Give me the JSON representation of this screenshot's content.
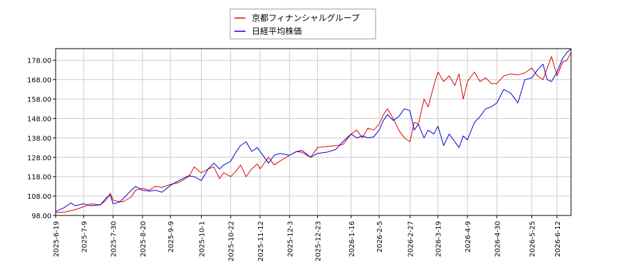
{
  "chart_data": {
    "type": "line",
    "title": "",
    "xlabel": "",
    "ylabel": "",
    "ylim": [
      98.0,
      184.0
    ],
    "yticks": [
      "98.00",
      "108.00",
      "118.00",
      "128.00",
      "138.00",
      "148.00",
      "158.00",
      "168.00",
      "178.00"
    ],
    "ytick_values": [
      98,
      108,
      118,
      128,
      138,
      148,
      158,
      168,
      178
    ],
    "xlim": [
      "2025-06-19",
      "2026-06-22"
    ],
    "xticks": [
      "2025-6-19",
      "2025-7-9",
      "2025-7-30",
      "2025-8-20",
      "2025-9-9",
      "2025-10-1",
      "2025-10-22",
      "2025-11-12",
      "2025-12-3",
      "2025-12-23",
      "2026-1-16",
      "2026-2-5",
      "2026-2-27",
      "2026-3-19",
      "2026-4-9",
      "2026-4-30",
      "2026-5-25",
      "2026-6-12"
    ],
    "grid": true,
    "legend_position": "top-center",
    "series": [
      {
        "name": "京都フィナンシャルグループ",
        "color": "#dd0000",
        "points": [
          [
            "2025-06-19",
            99.5
          ],
          [
            "2025-06-26",
            99.8
          ],
          [
            "2025-07-03",
            101.0
          ],
          [
            "2025-07-09",
            102.5
          ],
          [
            "2025-07-14",
            104.0
          ],
          [
            "2025-07-21",
            103.5
          ],
          [
            "2025-07-25",
            106.0
          ],
          [
            "2025-07-28",
            109.5
          ],
          [
            "2025-07-30",
            106.0
          ],
          [
            "2025-08-01",
            105.5
          ],
          [
            "2025-08-06",
            105.0
          ],
          [
            "2025-08-12",
            107.5
          ],
          [
            "2025-08-15",
            111.0
          ],
          [
            "2025-08-20",
            112.0
          ],
          [
            "2025-08-25",
            111.0
          ],
          [
            "2025-08-29",
            113.0
          ],
          [
            "2025-09-03",
            112.5
          ],
          [
            "2025-09-09",
            114.0
          ],
          [
            "2025-09-15",
            115.0
          ],
          [
            "2025-09-22",
            118.0
          ],
          [
            "2025-09-26",
            123.0
          ],
          [
            "2025-10-01",
            120.0
          ],
          [
            "2025-10-06",
            122.0
          ],
          [
            "2025-10-10",
            123.0
          ],
          [
            "2025-10-14",
            117.0
          ],
          [
            "2025-10-17",
            120.0
          ],
          [
            "2025-10-22",
            118.0
          ],
          [
            "2025-10-26",
            121.0
          ],
          [
            "2025-10-29",
            124.0
          ],
          [
            "2025-11-02",
            118.0
          ],
          [
            "2025-11-06",
            122.0
          ],
          [
            "2025-11-10",
            124.5
          ],
          [
            "2025-11-12",
            122.0
          ],
          [
            "2025-11-18",
            128.0
          ],
          [
            "2025-11-22",
            124.0
          ],
          [
            "2025-11-26",
            126.0
          ],
          [
            "2025-12-03",
            129.0
          ],
          [
            "2025-12-08",
            131.0
          ],
          [
            "2025-12-12",
            130.5
          ],
          [
            "2025-12-18",
            128.0
          ],
          [
            "2025-12-23",
            133.0
          ],
          [
            "2025-12-29",
            133.5
          ],
          [
            "2026-01-05",
            134.0
          ],
          [
            "2026-01-10",
            134.5
          ],
          [
            "2026-01-16",
            140.0
          ],
          [
            "2026-01-20",
            142.0
          ],
          [
            "2026-01-24",
            138.0
          ],
          [
            "2026-01-28",
            143.0
          ],
          [
            "2026-02-01",
            142.0
          ],
          [
            "2026-02-05",
            145.0
          ],
          [
            "2026-02-08",
            150.0
          ],
          [
            "2026-02-11",
            153.0
          ],
          [
            "2026-02-15",
            148.0
          ],
          [
            "2026-02-19",
            142.0
          ],
          [
            "2026-02-23",
            138.0
          ],
          [
            "2026-02-27",
            136.0
          ],
          [
            "2026-03-02",
            146.0
          ],
          [
            "2026-03-05",
            145.0
          ],
          [
            "2026-03-09",
            158.0
          ],
          [
            "2026-03-12",
            154.0
          ],
          [
            "2026-03-16",
            165.0
          ],
          [
            "2026-03-19",
            172.0
          ],
          [
            "2026-03-23",
            167.0
          ],
          [
            "2026-03-27",
            170.0
          ],
          [
            "2026-03-31",
            165.0
          ],
          [
            "2026-04-03",
            171.0
          ],
          [
            "2026-04-06",
            158.0
          ],
          [
            "2026-04-09",
            167.0
          ],
          [
            "2026-04-14",
            172.0
          ],
          [
            "2026-04-18",
            167.0
          ],
          [
            "2026-04-22",
            169.0
          ],
          [
            "2026-04-26",
            166.0
          ],
          [
            "2026-04-30",
            166.0
          ],
          [
            "2026-05-05",
            170.0
          ],
          [
            "2026-05-10",
            171.0
          ],
          [
            "2026-05-15",
            170.5
          ],
          [
            "2026-05-20",
            171.5
          ],
          [
            "2026-05-25",
            174.0
          ],
          [
            "2026-05-29",
            170.0
          ],
          [
            "2026-06-02",
            168.0
          ],
          [
            "2026-06-05",
            174.0
          ],
          [
            "2026-06-08",
            180.0
          ],
          [
            "2026-06-12",
            170.0
          ],
          [
            "2026-06-16",
            177.0
          ],
          [
            "2026-06-19",
            178.0
          ],
          [
            "2026-06-22",
            182.0
          ]
        ]
      },
      {
        "name": "日経平均株価",
        "color": "#0000cc",
        "points": [
          [
            "2025-06-19",
            100.0
          ],
          [
            "2025-06-25",
            102.0
          ],
          [
            "2025-06-30",
            104.5
          ],
          [
            "2025-07-03",
            103.0
          ],
          [
            "2025-07-09",
            104.0
          ],
          [
            "2025-07-14",
            103.0
          ],
          [
            "2025-07-21",
            103.5
          ],
          [
            "2025-07-25",
            107.0
          ],
          [
            "2025-07-28",
            108.5
          ],
          [
            "2025-07-30",
            104.0
          ],
          [
            "2025-08-04",
            105.0
          ],
          [
            "2025-08-08",
            108.0
          ],
          [
            "2025-08-12",
            111.0
          ],
          [
            "2025-08-15",
            113.0
          ],
          [
            "2025-08-20",
            111.0
          ],
          [
            "2025-08-25",
            110.5
          ],
          [
            "2025-08-29",
            111.0
          ],
          [
            "2025-09-03",
            110.0
          ],
          [
            "2025-09-09",
            113.5
          ],
          [
            "2025-09-15",
            116.0
          ],
          [
            "2025-09-22",
            118.5
          ],
          [
            "2025-09-26",
            118.0
          ],
          [
            "2025-10-01",
            116.0
          ],
          [
            "2025-10-06",
            122.0
          ],
          [
            "2025-10-10",
            125.0
          ],
          [
            "2025-10-14",
            122.0
          ],
          [
            "2025-10-17",
            124.0
          ],
          [
            "2025-10-22",
            126.0
          ],
          [
            "2025-10-26",
            131.0
          ],
          [
            "2025-10-29",
            134.0
          ],
          [
            "2025-11-02",
            136.0
          ],
          [
            "2025-11-06",
            131.0
          ],
          [
            "2025-11-10",
            133.0
          ],
          [
            "2025-11-12",
            131.0
          ],
          [
            "2025-11-18",
            125.0
          ],
          [
            "2025-11-22",
            129.0
          ],
          [
            "2025-11-26",
            130.0
          ],
          [
            "2025-12-03",
            129.0
          ],
          [
            "2025-12-08",
            131.0
          ],
          [
            "2025-12-12",
            131.5
          ],
          [
            "2025-12-18",
            128.0
          ],
          [
            "2025-12-23",
            130.0
          ],
          [
            "2025-12-29",
            130.5
          ],
          [
            "2026-01-05",
            132.0
          ],
          [
            "2026-01-10",
            136.0
          ],
          [
            "2026-01-16",
            140.0
          ],
          [
            "2026-01-20",
            138.0
          ],
          [
            "2026-01-24",
            139.0
          ],
          [
            "2026-01-28",
            138.0
          ],
          [
            "2026-02-01",
            138.5
          ],
          [
            "2026-02-05",
            142.0
          ],
          [
            "2026-02-08",
            147.0
          ],
          [
            "2026-02-11",
            150.0
          ],
          [
            "2026-02-15",
            147.0
          ],
          [
            "2026-02-19",
            149.0
          ],
          [
            "2026-02-23",
            153.0
          ],
          [
            "2026-02-27",
            152.0
          ],
          [
            "2026-03-02",
            142.0
          ],
          [
            "2026-03-05",
            145.0
          ],
          [
            "2026-03-09",
            138.0
          ],
          [
            "2026-03-12",
            142.0
          ],
          [
            "2026-03-16",
            140.0
          ],
          [
            "2026-03-19",
            144.0
          ],
          [
            "2026-03-23",
            134.0
          ],
          [
            "2026-03-27",
            140.0
          ],
          [
            "2026-03-31",
            136.0
          ],
          [
            "2026-04-03",
            133.0
          ],
          [
            "2026-04-06",
            139.0
          ],
          [
            "2026-04-09",
            137.0
          ],
          [
            "2026-04-14",
            146.0
          ],
          [
            "2026-04-18",
            149.0
          ],
          [
            "2026-04-22",
            153.0
          ],
          [
            "2026-04-26",
            154.0
          ],
          [
            "2026-04-30",
            156.0
          ],
          [
            "2026-05-05",
            163.0
          ],
          [
            "2026-05-10",
            161.0
          ],
          [
            "2026-05-15",
            156.0
          ],
          [
            "2026-05-20",
            168.0
          ],
          [
            "2026-05-25",
            169.0
          ],
          [
            "2026-05-29",
            173.0
          ],
          [
            "2026-06-02",
            176.0
          ],
          [
            "2026-06-05",
            168.0
          ],
          [
            "2026-06-08",
            167.0
          ],
          [
            "2026-06-12",
            172.0
          ],
          [
            "2026-06-16",
            179.0
          ],
          [
            "2026-06-19",
            182.0
          ],
          [
            "2026-06-22",
            184.0
          ]
        ]
      }
    ]
  }
}
